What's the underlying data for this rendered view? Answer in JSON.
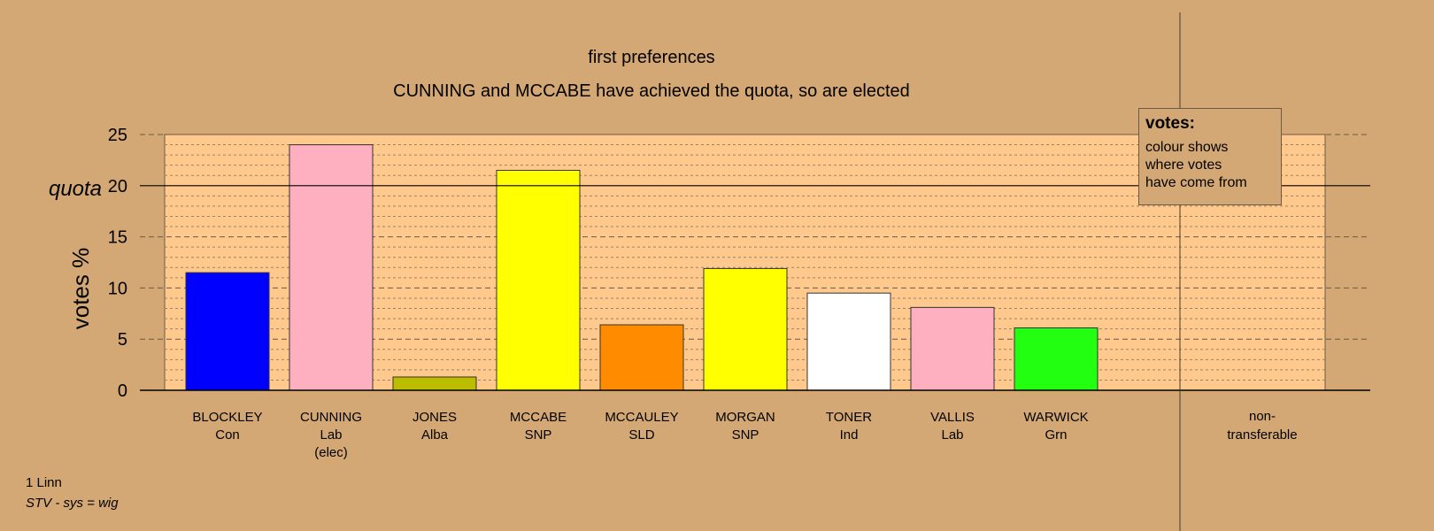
{
  "chart_data": {
    "type": "bar",
    "title": "first preferences",
    "subtitle": "CUNNING and MCCABE have achieved the quota, so are elected",
    "ylabel": "votes %",
    "ylim": [
      0,
      25
    ],
    "yticks": [
      0,
      5,
      10,
      15,
      20,
      25
    ],
    "quota": 20,
    "quota_label": "quota",
    "grid": true,
    "categories": [
      {
        "name": "BLOCKLEY",
        "party": "Con",
        "note": "",
        "value": 11.5,
        "color": "#0000ff"
      },
      {
        "name": "CUNNING",
        "party": "Lab",
        "note": "(elec)",
        "value": 24.0,
        "color": "#ffb0c0"
      },
      {
        "name": "JONES",
        "party": "Alba",
        "note": "",
        "value": 1.3,
        "color": "#bdbd00"
      },
      {
        "name": "MCCABE",
        "party": "SNP",
        "note": "",
        "value": 21.5,
        "color": "#ffff00"
      },
      {
        "name": "MCCAULEY",
        "party": "SLD",
        "note": "",
        "value": 6.4,
        "color": "#ff8c00"
      },
      {
        "name": "MORGAN",
        "party": "SNP",
        "note": "",
        "value": 11.9,
        "color": "#ffff00"
      },
      {
        "name": "TONER",
        "party": "Ind",
        "note": "",
        "value": 9.5,
        "color": "#ffffff"
      },
      {
        "name": "VALLIS",
        "party": "Lab",
        "note": "",
        "value": 8.1,
        "color": "#ffb0c0"
      },
      {
        "name": "WARWICK",
        "party": "Grn",
        "note": "",
        "value": 6.1,
        "color": "#22ff11"
      }
    ],
    "nontransferable": {
      "label_line1": "non-",
      "label_line2": "transferable"
    },
    "colors": {
      "background": "#d4a874",
      "plot_area": "#ffc88c"
    }
  },
  "legend": {
    "title": "votes:",
    "lines": [
      "colour shows",
      "where votes",
      "have come from"
    ]
  },
  "footer": {
    "line1": "1 Linn",
    "line2": "STV - sys = wig"
  }
}
